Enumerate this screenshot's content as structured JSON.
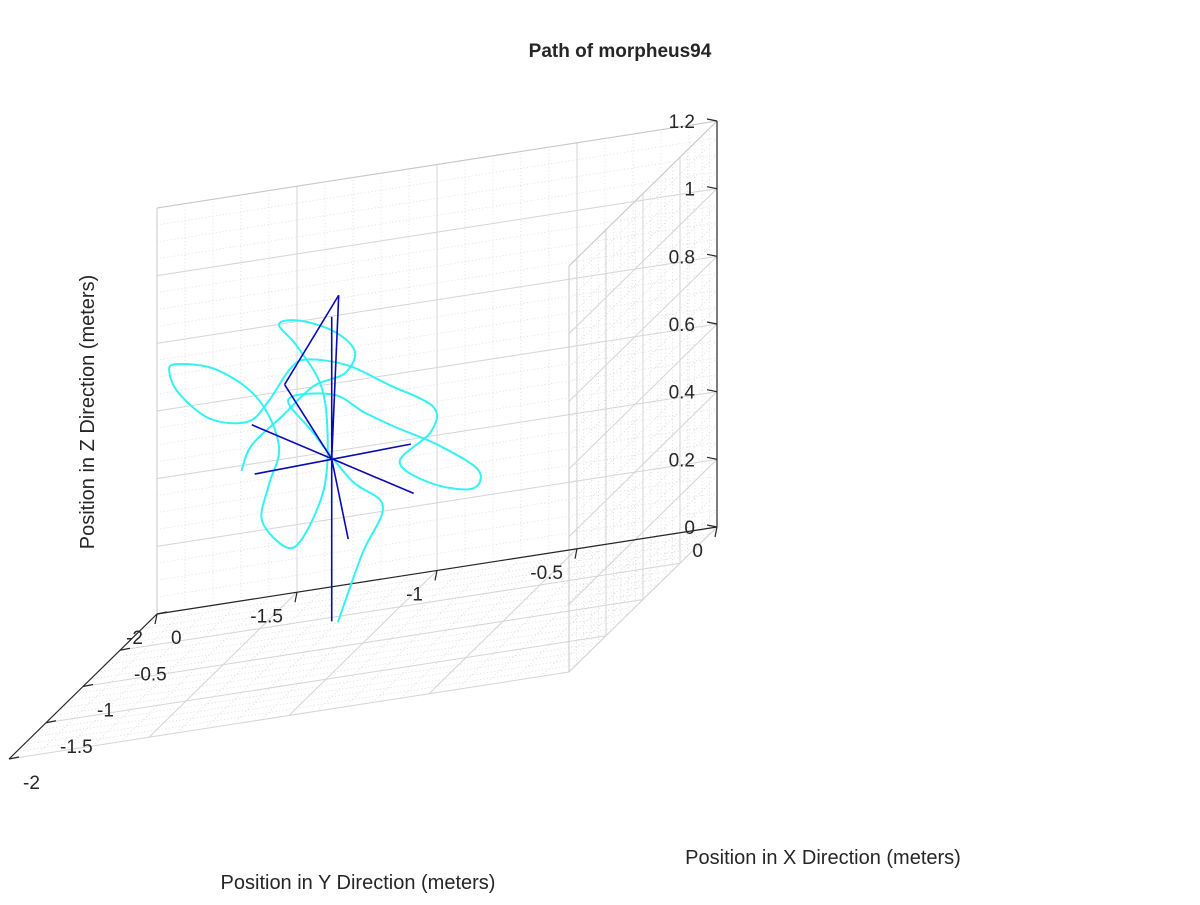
{
  "chart_data": {
    "type": "line",
    "title": "Path of morpheus94",
    "xlabel": "Position in X Direction (meters)",
    "ylabel": "Position in Y Direction (meters)",
    "zlabel": "Position in Z Direction (meters)",
    "xlim": [
      -2,
      0
    ],
    "ylim": [
      -2,
      0
    ],
    "zlim": [
      0,
      1.2
    ],
    "x_ticks": [
      "-2",
      "-1.5",
      "-1",
      "-0.5",
      "0"
    ],
    "y_ticks": [
      "-2",
      "-1.5",
      "-1",
      "-0.5",
      "0"
    ],
    "z_ticks": [
      "0",
      "0.2",
      "0.4",
      "0.6",
      "0.8",
      "1",
      "1.2"
    ],
    "grid": true,
    "minor_grid": true,
    "colors": {
      "path": "#33f2f2",
      "frame": "#0a0ab4",
      "axis": "#262626",
      "grid": "#d6d6d6"
    },
    "series": [
      {
        "color": "#33f2f2",
        "points": [
          [
            -1.15,
            -1.05,
            0.1
          ],
          [
            -1.2,
            -0.95,
            0.3
          ],
          [
            -1.3,
            -0.85,
            0.45
          ],
          [
            -1.35,
            -0.95,
            0.55
          ],
          [
            -1.3,
            -1.1,
            0.7
          ],
          [
            -1.25,
            -1.2,
            0.8
          ],
          [
            -1.4,
            -1.0,
            0.82
          ],
          [
            -1.55,
            -0.85,
            0.78
          ],
          [
            -1.7,
            -0.7,
            0.75
          ],
          [
            -1.85,
            -0.5,
            0.7
          ],
          [
            -1.9,
            -0.35,
            0.62
          ],
          [
            -1.8,
            -0.4,
            0.55
          ],
          [
            -1.6,
            -0.6,
            0.55
          ],
          [
            -1.45,
            -0.75,
            0.6
          ],
          [
            -1.6,
            -0.6,
            0.7
          ],
          [
            -1.75,
            -0.55,
            0.8
          ],
          [
            -1.6,
            -0.75,
            0.86
          ],
          [
            -1.4,
            -0.95,
            0.9
          ],
          [
            -1.2,
            -1.15,
            0.9
          ],
          [
            -1.05,
            -1.25,
            0.85
          ],
          [
            -0.95,
            -1.35,
            0.75
          ],
          [
            -0.85,
            -1.45,
            0.68
          ],
          [
            -0.6,
            -1.65,
            0.66
          ],
          [
            -0.45,
            -1.8,
            0.72
          ],
          [
            -0.4,
            -1.85,
            0.78
          ],
          [
            -0.5,
            -1.8,
            0.82
          ],
          [
            -0.7,
            -1.6,
            0.82
          ],
          [
            -0.9,
            -1.4,
            0.75
          ],
          [
            -1.0,
            -1.3,
            0.62
          ],
          [
            -0.95,
            -1.35,
            0.5
          ],
          [
            -0.85,
            -1.4,
            0.38
          ],
          [
            -0.9,
            -1.3,
            0.3
          ],
          [
            -1.05,
            -1.2,
            0.35
          ],
          [
            -1.15,
            -1.1,
            0.5
          ],
          [
            -1.1,
            -1.1,
            0.65
          ],
          [
            -1.0,
            -1.15,
            0.78
          ],
          [
            -0.95,
            -1.25,
            0.9
          ],
          [
            -1.0,
            -1.3,
            0.98
          ],
          [
            -1.1,
            -1.2,
            1.0
          ],
          [
            -1.2,
            -1.05,
            0.97
          ],
          [
            -1.3,
            -0.95,
            0.92
          ],
          [
            -1.25,
            -1.0,
            0.85
          ],
          [
            -1.1,
            -1.15,
            0.8
          ],
          [
            -0.95,
            -1.3,
            0.7
          ],
          [
            -0.8,
            -1.45,
            0.6
          ],
          [
            -0.75,
            -1.5,
            0.52
          ]
        ]
      }
    ],
    "frame": {
      "color": "#0a0ab4",
      "center": [
        -1.12,
        -1.08,
        0.58
      ],
      "segments": [
        [
          [
            -1.45,
            -0.7,
            0.5
          ],
          [
            -0.8,
            -1.45,
            0.66
          ]
        ],
        [
          [
            -1.3,
            -0.75,
            0.62
          ],
          [
            -0.95,
            -1.4,
            0.54
          ]
        ],
        [
          [
            -1.12,
            -1.08,
            0.1
          ],
          [
            -1.12,
            -1.08,
            1.0
          ]
        ],
        [
          [
            -1.12,
            -1.08,
            0.58
          ],
          [
            -0.95,
            -1.1,
            1.03
          ]
        ],
        [
          [
            -0.95,
            -1.1,
            1.03
          ],
          [
            -1.0,
            -1.28,
            0.8
          ]
        ],
        [
          [
            -1.0,
            -1.28,
            0.8
          ],
          [
            -1.12,
            -1.08,
            0.58
          ]
        ],
        [
          [
            -1.12,
            -1.08,
            0.58
          ],
          [
            -1.2,
            -1.0,
            0.35
          ]
        ]
      ]
    }
  }
}
